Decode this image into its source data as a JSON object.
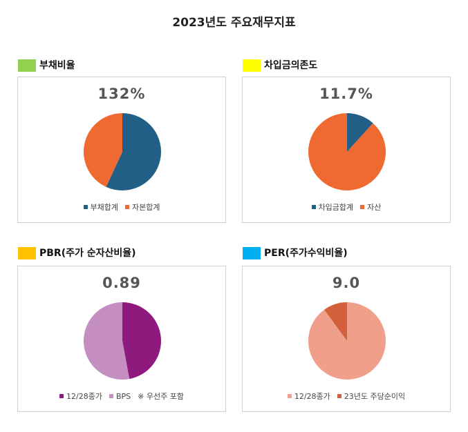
{
  "page": {
    "title": "2023년도 주요재무지표"
  },
  "chart_data": [
    {
      "type": "pie",
      "title": "부채비율",
      "title_color": "#92d050",
      "headline_value": "132%",
      "slices": [
        {
          "label": "부채합계",
          "value": 56.9,
          "color": "#215f87"
        },
        {
          "label": "자본합계",
          "value": 43.1,
          "color": "#ef6a30"
        }
      ],
      "note": ""
    },
    {
      "type": "pie",
      "title": "차입금의존도",
      "title_color": "#ffff00",
      "headline_value": "11.7%",
      "slices": [
        {
          "label": "차입금합계",
          "value": 11.7,
          "color": "#215f87"
        },
        {
          "label": "자산",
          "value": 88.3,
          "color": "#ef6a30"
        }
      ],
      "note": ""
    },
    {
      "type": "pie",
      "title": "PBR(주가 순자산비율)",
      "title_color": "#ffc000",
      "headline_value": "0.89",
      "slices": [
        {
          "label": "12/28종가",
          "value": 47.1,
          "color": "#8e1a7e"
        },
        {
          "label": "BPS",
          "value": 52.9,
          "color": "#c48fc0"
        }
      ],
      "note": "※ 우선주 포함"
    },
    {
      "type": "pie",
      "title": "PER(주가수익비율)",
      "title_color": "#00b0f0",
      "headline_value": "9.0",
      "slices": [
        {
          "label": "12/28종가",
          "value": 90.0,
          "color": "#f0a08a"
        },
        {
          "label": "23년도 주당순이익",
          "value": 10.0,
          "color": "#d2603a"
        }
      ],
      "note": ""
    }
  ]
}
